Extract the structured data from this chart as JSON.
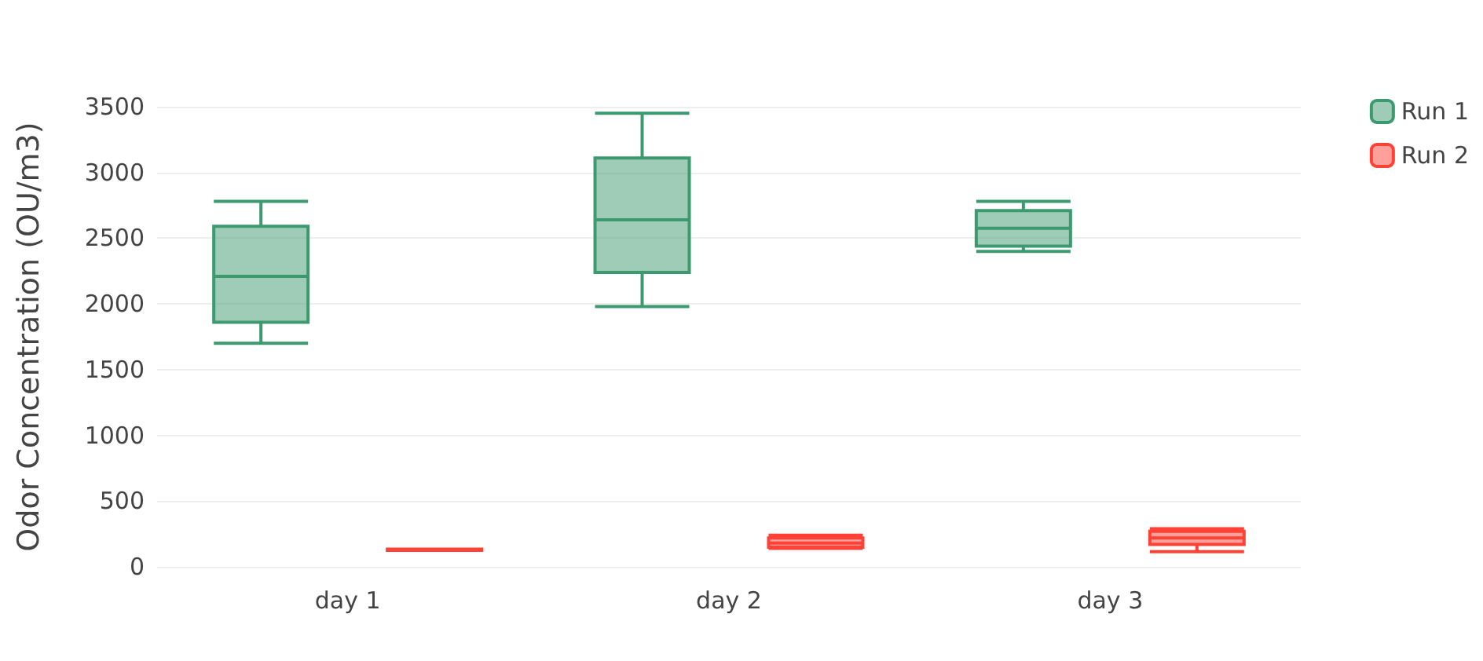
{
  "chart_data": {
    "type": "box",
    "ylabel": "Odor Concentration (OU/m3)",
    "categories": [
      "day 1",
      "day 2",
      "day 3"
    ],
    "ylim": [
      0,
      3500
    ],
    "yticks": [
      0,
      500,
      1000,
      1500,
      2000,
      2500,
      3000,
      3500
    ],
    "grid": "y",
    "legend": "top right",
    "series": [
      {
        "name": "Run 1",
        "color": "#3d9970",
        "boxes": [
          {
            "low": 1700,
            "q1": 1860,
            "median": 2210,
            "q3": 2590,
            "high": 2780
          },
          {
            "low": 1980,
            "q1": 2240,
            "median": 2640,
            "q3": 3110,
            "high": 3450
          },
          {
            "low": 2400,
            "q1": 2440,
            "median": 2575,
            "q3": 2710,
            "high": 2780
          }
        ]
      },
      {
        "name": "Run 2",
        "color": "#ff4136",
        "boxes": [
          {
            "low": 125,
            "q1": 125,
            "median": 130,
            "q3": 135,
            "high": 135
          },
          {
            "low": 140,
            "q1": 150,
            "median": 180,
            "q3": 220,
            "high": 240
          },
          {
            "low": 115,
            "q1": 170,
            "median": 220,
            "q3": 270,
            "high": 290
          }
        ]
      }
    ]
  }
}
